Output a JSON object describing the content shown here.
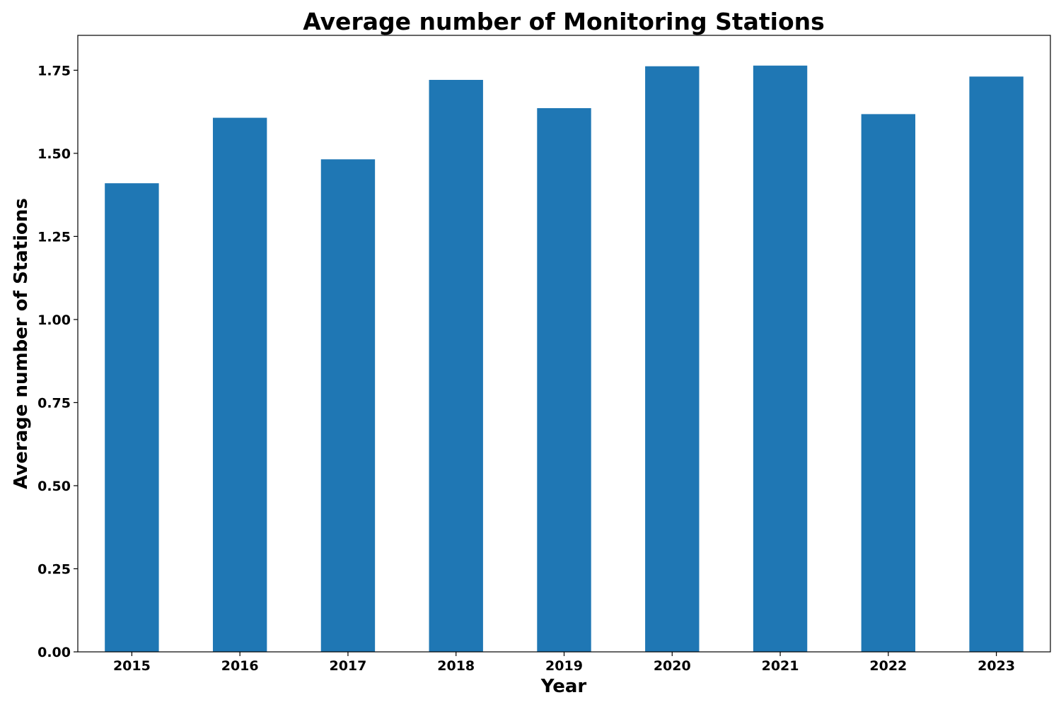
{
  "chart_data": {
    "type": "bar",
    "title": "Average number of Monitoring Stations",
    "xlabel": "Year",
    "ylabel": "Average number of Stations",
    "categories": [
      "2015",
      "2016",
      "2017",
      "2018",
      "2019",
      "2020",
      "2021",
      "2022",
      "2023"
    ],
    "values": [
      1.41,
      1.607,
      1.482,
      1.721,
      1.636,
      1.762,
      1.764,
      1.618,
      1.731
    ],
    "ylim": [
      0,
      1.855
    ],
    "yticks": [
      0.0,
      0.25,
      0.5,
      0.75,
      1.0,
      1.25,
      1.5,
      1.75
    ],
    "ytick_labels": [
      "0.00",
      "0.25",
      "0.50",
      "0.75",
      "1.00",
      "1.25",
      "1.50",
      "1.75"
    ],
    "bar_color": "#1f77b4",
    "grid": false,
    "legend": "none"
  }
}
